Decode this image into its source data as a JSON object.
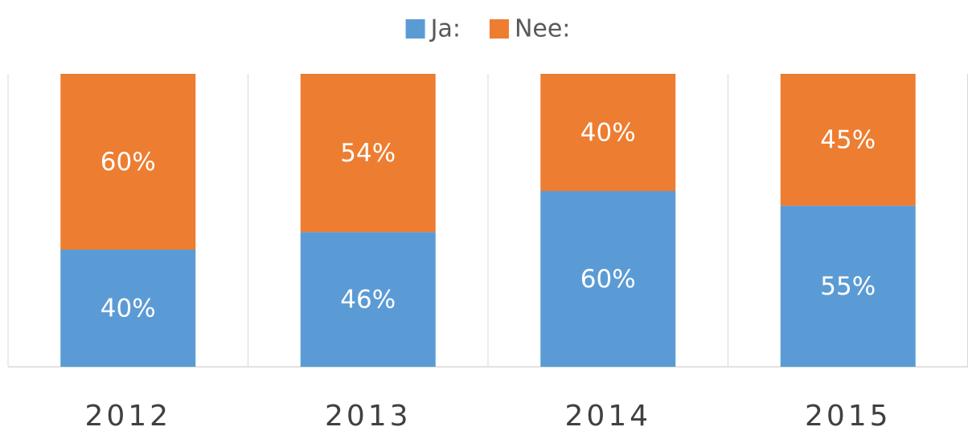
{
  "chart_data": {
    "type": "bar",
    "stacked": true,
    "categories": [
      "2012",
      "2013",
      "2014",
      "2015"
    ],
    "series": [
      {
        "name": "Ja:",
        "color": "#5b9bd5",
        "values": [
          40,
          46,
          60,
          55
        ],
        "value_labels": [
          "40%",
          "46%",
          "60%",
          "55%"
        ]
      },
      {
        "name": "Nee:",
        "color": "#ed7d31",
        "values": [
          60,
          54,
          40,
          45
        ],
        "value_labels": [
          "60%",
          "54%",
          "40%",
          "45%"
        ]
      }
    ],
    "ylim": [
      0,
      100
    ],
    "legend": "top"
  }
}
